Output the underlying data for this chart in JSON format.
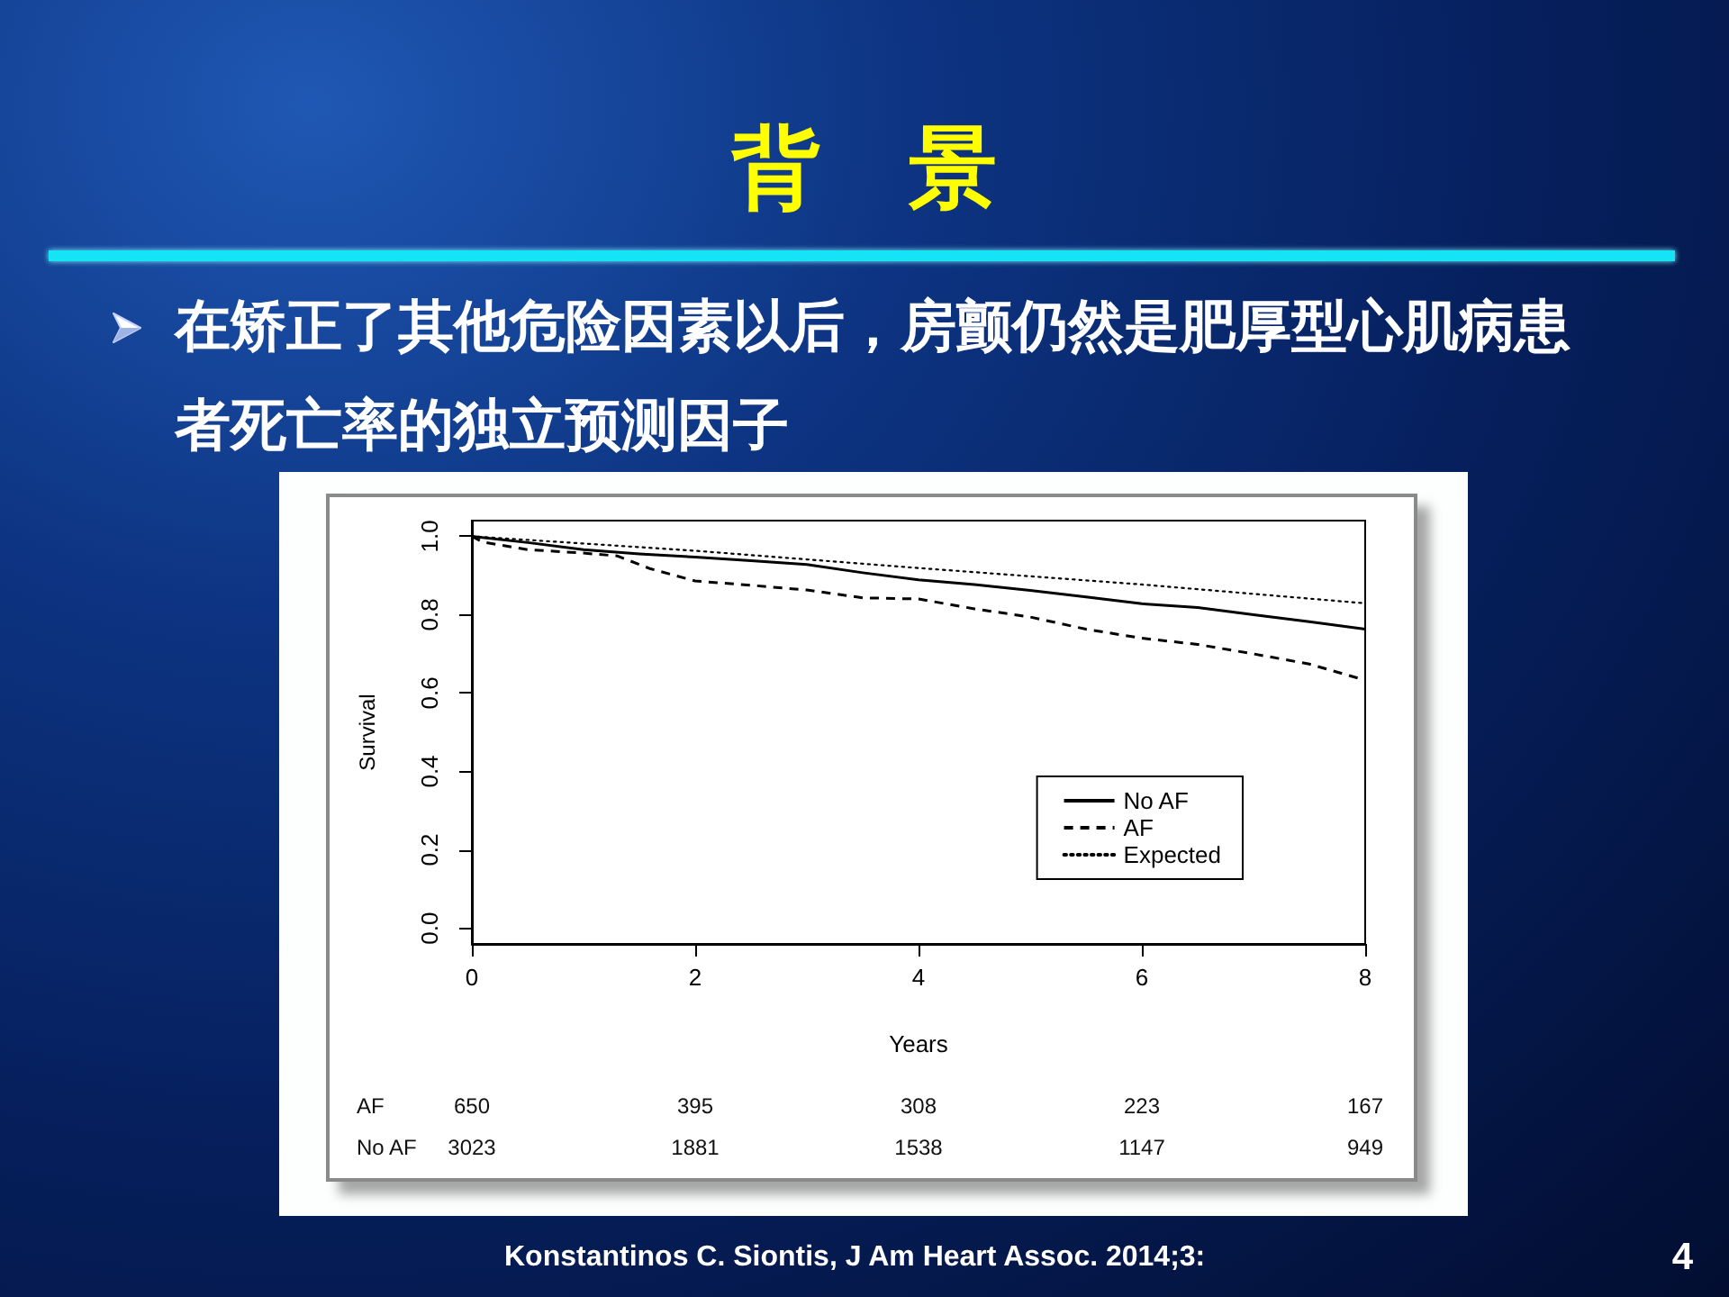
{
  "chart_data": {
    "type": "line",
    "title": "背　景",
    "subtitle": "在矫正了其他危险因素以后，房颤仍然是肥厚型心肌病患者死亡率的独立预测因子",
    "xlabel": "Years",
    "ylabel": "Survival",
    "series": [
      {
        "name": "No AF",
        "color": "#000000",
        "line_style": "solid",
        "x": [
          0,
          0.5,
          1,
          1.5,
          2,
          2.5,
          3,
          3.5,
          4,
          4.5,
          5,
          5.5,
          6,
          6.5,
          7,
          7.5,
          8
        ],
        "values": [
          1.0,
          0.984,
          0.966,
          0.955,
          0.947,
          0.938,
          0.928,
          0.907,
          0.889,
          0.877,
          0.862,
          0.845,
          0.828,
          0.818,
          0.8,
          0.782,
          0.763
        ]
      },
      {
        "name": "AF",
        "color": "#000000",
        "line_style": "dashed",
        "x": [
          0,
          0.1,
          0.5,
          1,
          1.3,
          1.6,
          2,
          2.5,
          3,
          3.5,
          4,
          4.5,
          5,
          5.5,
          6,
          6.5,
          7,
          7.5,
          8
        ],
        "values": [
          1.0,
          0.985,
          0.966,
          0.957,
          0.95,
          0.917,
          0.886,
          0.875,
          0.863,
          0.843,
          0.84,
          0.815,
          0.794,
          0.763,
          0.74,
          0.724,
          0.7,
          0.674,
          0.633
        ]
      },
      {
        "name": "Expected",
        "color": "#000000",
        "line_style": "dotted",
        "x": [
          0,
          2,
          4,
          6,
          8
        ],
        "values": [
          1.0,
          0.963,
          0.919,
          0.877,
          0.829
        ]
      }
    ],
    "xlim": [
      0,
      8
    ],
    "xticks": [
      0,
      2,
      4,
      6,
      8
    ],
    "ylim": [
      -0.04,
      1.04
    ],
    "yticks": [
      {
        "value": 0,
        "label": "0.0"
      },
      0.2,
      0.4,
      0.6,
      0.8,
      {
        "value": 1,
        "label": "1.0"
      }
    ],
    "legend": "bottom right",
    "marker": "none",
    "annotations": [
      "AF",
      "650",
      "395",
      "308",
      "223",
      "167",
      "No AF",
      "3023",
      "1881",
      "1538",
      "1147",
      "949",
      "Konstantinos C. Siontis, J Am Heart Assoc. 2014;3:",
      "4"
    ]
  }
}
